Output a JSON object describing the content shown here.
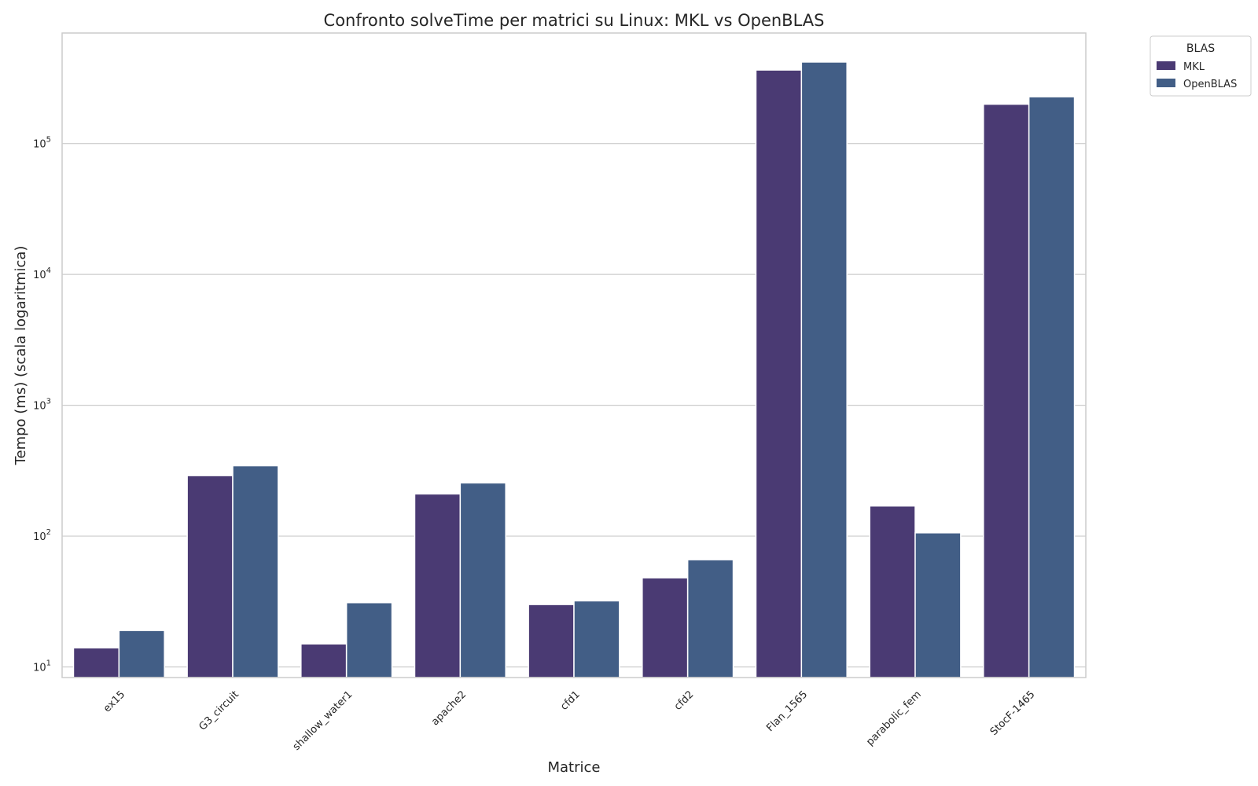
{
  "chart_data": {
    "type": "bar",
    "title": "Confronto solveTime per matrici su Linux: MKL vs OpenBLAS",
    "xlabel": "Matrice",
    "ylabel": "Tempo (ms) (scala logaritmica)",
    "yscale": "log",
    "ylim": [
      8.3,
      700000
    ],
    "yticks": [
      10,
      100,
      1000,
      10000,
      100000
    ],
    "ytick_labels": [
      {
        "base": "10",
        "exp": "1"
      },
      {
        "base": "10",
        "exp": "2"
      },
      {
        "base": "10",
        "exp": "3"
      },
      {
        "base": "10",
        "exp": "4"
      },
      {
        "base": "10",
        "exp": "5"
      }
    ],
    "grid": true,
    "legend": {
      "title": "BLAS",
      "placement": "outside-top-right"
    },
    "categories": [
      "ex15",
      "G3_circuit",
      "shallow_water1",
      "apache2",
      "cfd1",
      "cfd2",
      "Flan_1565",
      "parabolic_fem",
      "StocF-1465"
    ],
    "series": [
      {
        "name": "MKL",
        "color": "#4a3a73",
        "values": [
          14,
          290,
          15,
          210,
          30,
          48,
          365000,
          170,
          200000
        ]
      },
      {
        "name": "OpenBLAS",
        "color": "#425e86",
        "values": [
          19,
          345,
          31,
          255,
          32,
          66,
          420000,
          106,
          228000
        ]
      }
    ],
    "colors": {
      "frame": "#cccccc",
      "grid": "#cccccc",
      "text": "#262626"
    }
  }
}
